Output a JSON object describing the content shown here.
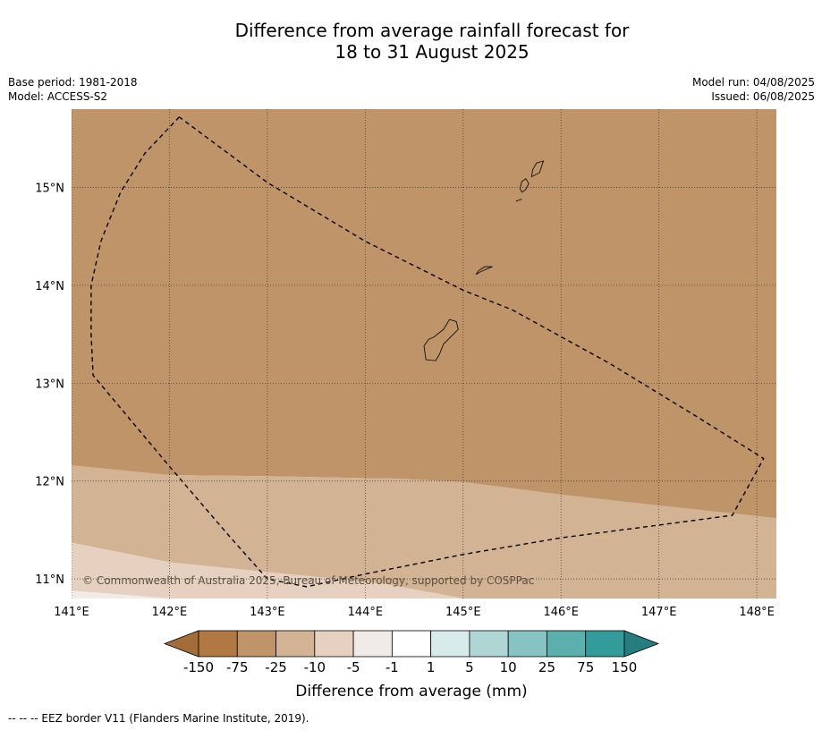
{
  "title_line1": "Difference from average rainfall forecast for",
  "title_line2": "18 to 31 August 2025",
  "meta_left": [
    "Base period: 1981-2018",
    "Model: ACCESS-S2"
  ],
  "meta_right": [
    "Model run: 04/08/2025",
    "Issued: 06/08/2025"
  ],
  "map": {
    "lon_range": [
      141.0,
      148.2
    ],
    "lat_range": [
      10.8,
      15.8
    ],
    "lon_ticks": [
      141,
      142,
      143,
      144,
      145,
      146,
      147,
      148
    ],
    "lon_tick_labels": [
      "141°E",
      "142°E",
      "143°E",
      "144°E",
      "145°E",
      "146°E",
      "147°E",
      "148°E"
    ],
    "lat_ticks": [
      11,
      12,
      13,
      14,
      15
    ],
    "lat_tick_labels": [
      "11°N",
      "12°N",
      "13°N",
      "14°N",
      "15°N"
    ],
    "gridlines": "dotted",
    "copyright": "© Commonwealth of Australia 2025, Bureau of Meteorology, supported by COSPPac",
    "regions": [
      {
        "name": "-75 to -25",
        "color": "#bf9468"
      },
      {
        "name": "-25 to -10",
        "color": "#d2b393"
      },
      {
        "name": "-10 to -5",
        "color": "#e6d1c0"
      },
      {
        "name": "-5 to -1",
        "color": "#f1ebe7"
      }
    ],
    "band_boundaries": {
      "lon": [
        141.0,
        142.0,
        143.0,
        144.0,
        144.2,
        145.0,
        146.0,
        147.0,
        148.2
      ],
      "b1": [
        12.16,
        12.06,
        12.05,
        12.03,
        12.03,
        11.99,
        11.86,
        11.75,
        11.62
      ],
      "b2": [
        11.37,
        11.17,
        11.07,
        10.97,
        10.95,
        10.8,
        10.8,
        10.8,
        10.8
      ],
      "b3": [
        10.88,
        10.8,
        10.8,
        10.8,
        10.8,
        10.8,
        10.8,
        10.8,
        10.8
      ]
    },
    "eez_border": [
      [
        142.1,
        15.72
      ],
      [
        141.75,
        15.35
      ],
      [
        141.5,
        14.95
      ],
      [
        141.3,
        14.45
      ],
      [
        141.2,
        14.0
      ],
      [
        141.2,
        13.5
      ],
      [
        141.22,
        13.08
      ],
      [
        142.0,
        12.15
      ],
      [
        142.6,
        11.45
      ],
      [
        143.0,
        11.0
      ],
      [
        143.4,
        10.92
      ],
      [
        144.0,
        11.05
      ],
      [
        145.0,
        11.25
      ],
      [
        146.0,
        11.42
      ],
      [
        147.0,
        11.55
      ],
      [
        147.75,
        11.65
      ],
      [
        148.07,
        12.23
      ],
      [
        147.4,
        12.65
      ],
      [
        146.5,
        13.2
      ],
      [
        145.5,
        13.75
      ],
      [
        145.0,
        13.95
      ],
      [
        144.0,
        14.45
      ],
      [
        143.0,
        15.05
      ],
      [
        142.1,
        15.72
      ]
    ],
    "islands": [
      [
        [
          144.62,
          13.24
        ],
        [
          144.72,
          13.23
        ],
        [
          144.76,
          13.3
        ],
        [
          144.8,
          13.4
        ],
        [
          144.88,
          13.48
        ],
        [
          144.95,
          13.55
        ],
        [
          144.93,
          13.63
        ],
        [
          144.86,
          13.65
        ],
        [
          144.8,
          13.55
        ],
        [
          144.7,
          13.47
        ],
        [
          144.65,
          13.45
        ],
        [
          144.6,
          13.38
        ]
      ],
      [
        [
          145.13,
          14.11
        ],
        [
          145.18,
          14.14
        ],
        [
          145.25,
          14.17
        ],
        [
          145.3,
          14.19
        ],
        [
          145.22,
          14.19
        ],
        [
          145.16,
          14.15
        ]
      ],
      [
        [
          145.6,
          14.95
        ],
        [
          145.64,
          14.98
        ],
        [
          145.67,
          15.04
        ],
        [
          145.64,
          15.09
        ],
        [
          145.6,
          15.06
        ],
        [
          145.58,
          14.99
        ]
      ],
      [
        [
          145.7,
          15.11
        ],
        [
          145.78,
          15.15
        ],
        [
          145.82,
          15.27
        ],
        [
          145.75,
          15.25
        ],
        [
          145.71,
          15.18
        ]
      ],
      [
        [
          145.54,
          14.86
        ],
        [
          145.6,
          14.88
        ]
      ]
    ]
  },
  "legend": {
    "title": "Difference from average (mm)",
    "labels": [
      "-150",
      "-75",
      "-25",
      "-10",
      "-5",
      "-1",
      "1",
      "5",
      "10",
      "25",
      "75",
      "150"
    ],
    "colors": [
      "#a36d3a",
      "#b17841",
      "#bf9468",
      "#d2b393",
      "#e6d1c0",
      "#f1ebe7",
      "#ffffff",
      "#d6ebea",
      "#afd6d4",
      "#87c3c2",
      "#5bb0ae",
      "#339b9a",
      "#257e7d"
    ]
  },
  "footer": "--  --  -- EEZ border V11 (Flanders Marine Institute, 2019)."
}
